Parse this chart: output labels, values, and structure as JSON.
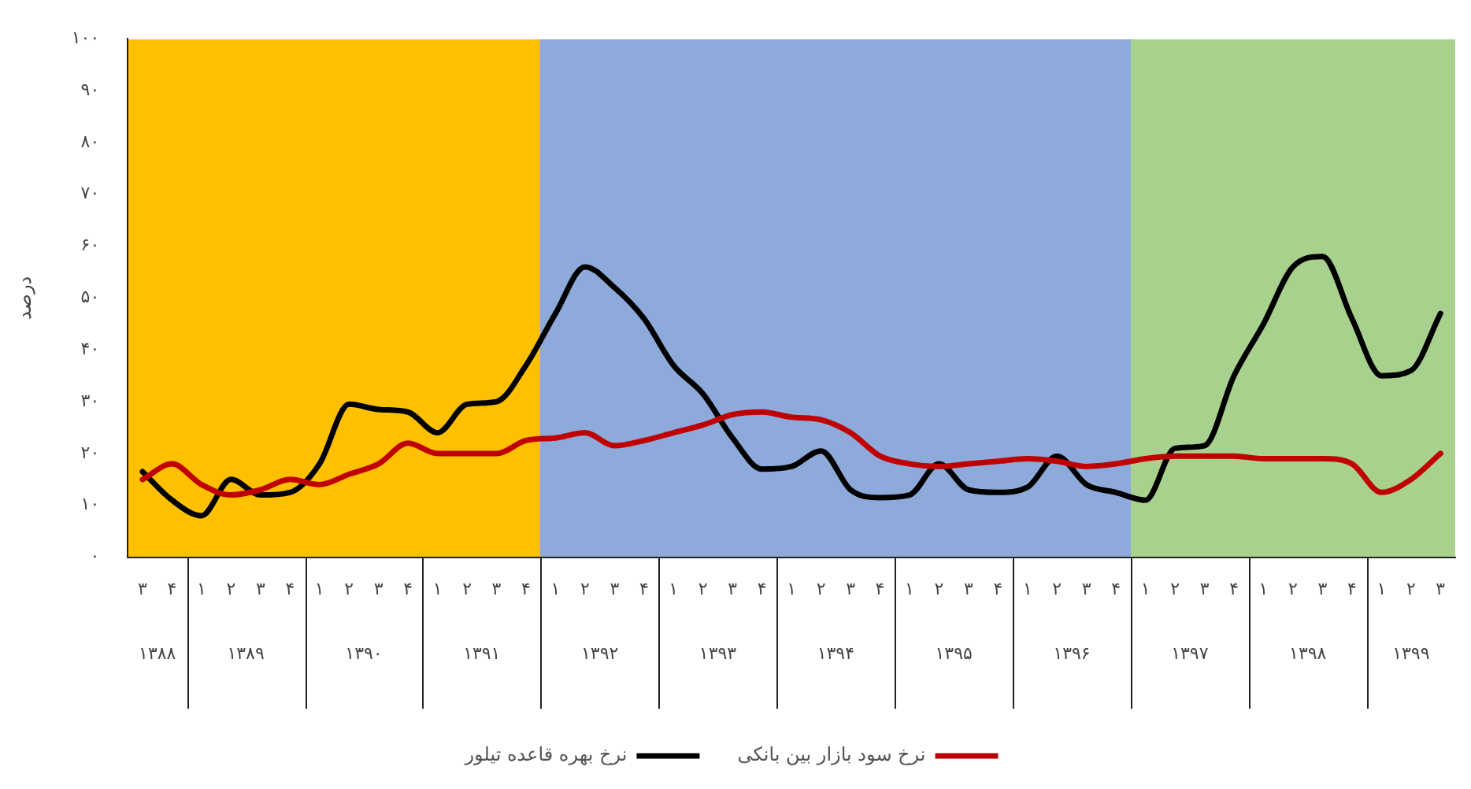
{
  "chart_data": {
    "type": "line",
    "ylabel": "درصد",
    "categories": [
      "۳",
      "۴",
      "۱",
      "۲",
      "۳",
      "۴",
      "۱",
      "۲",
      "۳",
      "۴",
      "۱",
      "۲",
      "۳",
      "۴",
      "۱",
      "۲",
      "۳",
      "۴",
      "۱",
      "۲",
      "۳",
      "۴",
      "۱",
      "۲",
      "۳",
      "۴",
      "۱",
      "۲",
      "۳",
      "۴",
      "۱",
      "۲",
      "۳",
      "۴",
      "۱",
      "۲",
      "۳",
      "۴",
      "۱",
      "۲",
      "۳",
      "۴",
      "۱",
      "۲",
      "۳"
    ],
    "annotations": [
      "۱۳۸۸",
      "۱۳۸۹",
      "۱۳۹۰",
      "۱۳۹۱",
      "۱۳۹۲",
      "۱۳۹۳",
      "۱۳۹۴",
      "۱۳۹۵",
      "۱۳۹۶",
      "۱۳۹۷",
      "۱۳۹۸",
      "۱۳۹۹"
    ],
    "series": [
      {
        "name": "نرخ سود بازار بین بانکی",
        "color": "#c00000",
        "values": [
          15,
          18,
          14,
          12,
          13,
          15,
          14,
          16,
          18,
          22,
          20,
          20,
          20,
          22.5,
          23,
          24,
          21.5,
          22.5,
          24,
          25.5,
          27.5,
          28,
          27,
          26.5,
          24,
          19.5,
          18,
          17.5,
          18,
          18.5,
          19,
          18.5,
          17.5,
          18,
          19,
          19.5,
          19.5,
          19.5,
          19,
          19,
          19,
          18,
          12.5,
          15,
          20
        ]
      },
      {
        "name": "نرخ بهره قاعده تیلور",
        "color": "#000000",
        "values": [
          16.5,
          11,
          8,
          15,
          12,
          12.5,
          18,
          29.5,
          28.5,
          28,
          24,
          29.5,
          30,
          37,
          47,
          56,
          52,
          46,
          37,
          31.5,
          23,
          17,
          17.5,
          20.5,
          13,
          11.5,
          12,
          18,
          13,
          12.5,
          13.5,
          19.5,
          14,
          12.5,
          11,
          21,
          21.5,
          35,
          45,
          56,
          58,
          46,
          35,
          36,
          47
        ]
      }
    ],
    "ylim": [
      0,
      100
    ],
    "yticks": [
      {
        "value": 0,
        "label": "۰"
      },
      {
        "value": 10,
        "label": "۱۰"
      },
      {
        "value": 20,
        "label": "۲۰"
      },
      {
        "value": 30,
        "label": "۳۰"
      },
      {
        "value": 40,
        "label": "۴۰"
      },
      {
        "value": 50,
        "label": "۵۰"
      },
      {
        "value": 60,
        "label": "۶۰"
      },
      {
        "value": 70,
        "label": "۷۰"
      },
      {
        "value": 80,
        "label": "۸۰"
      },
      {
        "value": 90,
        "label": "۹۰"
      },
      {
        "value": 100,
        "label": "۱۰۰"
      }
    ],
    "grid": false,
    "legend": "bottom",
    "marker": "none",
    "line_style": "solid"
  }
}
